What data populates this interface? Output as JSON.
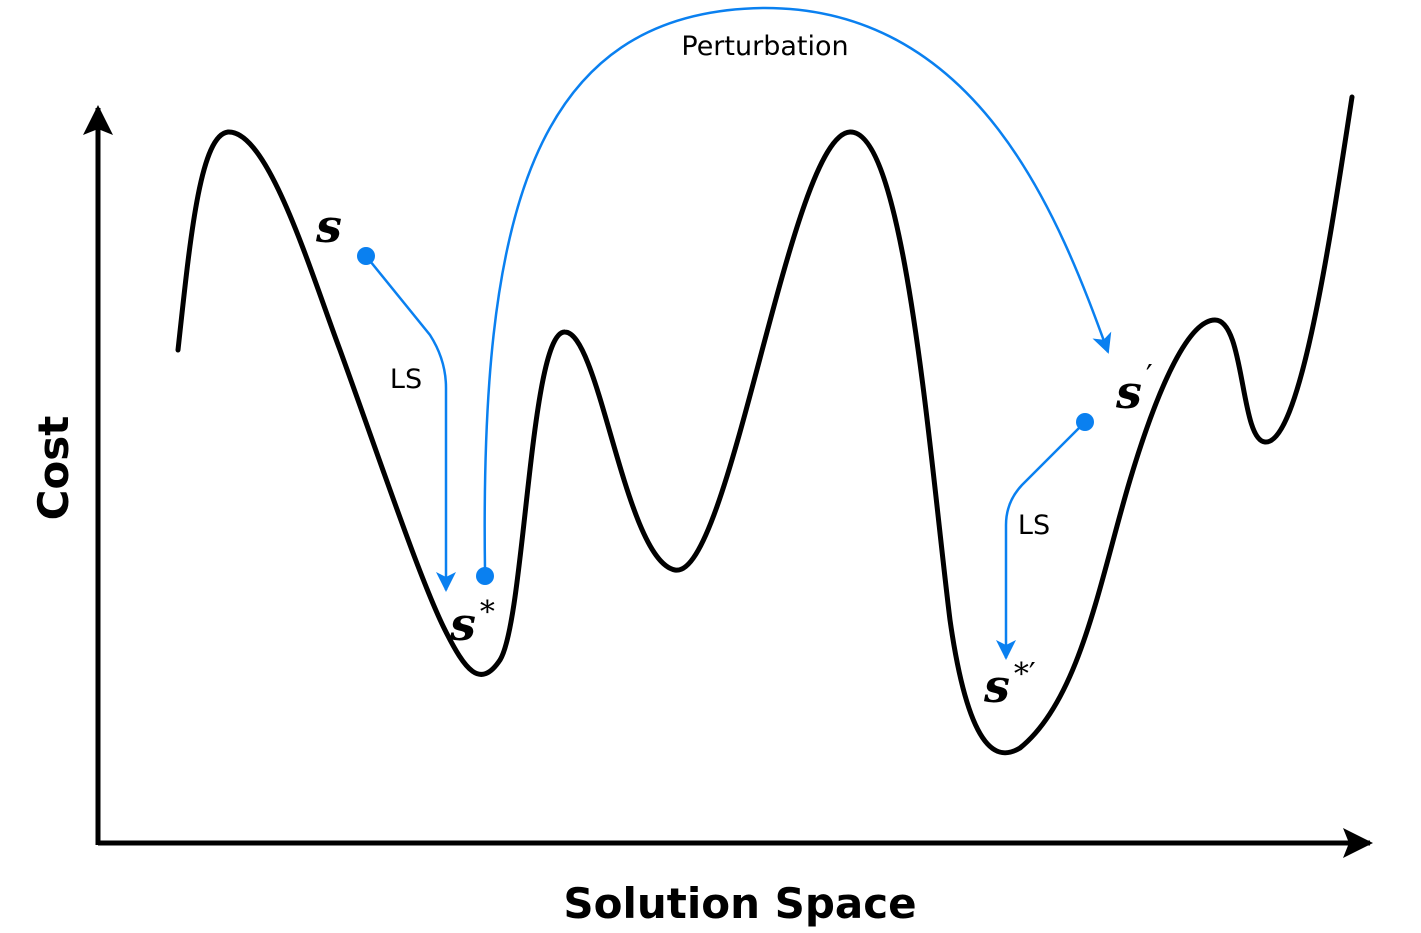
{
  "axes": {
    "x_label": "Solution Space",
    "y_label": "Cost"
  },
  "annotations": {
    "perturbation": "Perturbation",
    "ls_first": "LS",
    "ls_second": "LS"
  },
  "solutions": {
    "start": {
      "symbol": "s"
    },
    "local_opt": {
      "symbol": "s",
      "mark": "*"
    },
    "perturbed": {
      "symbol": "s",
      "mark": "′"
    },
    "new_local_opt": {
      "symbol": "s",
      "mark": "*′"
    }
  },
  "colors": {
    "curve": "#000000",
    "accent": "#0a80f0"
  }
}
